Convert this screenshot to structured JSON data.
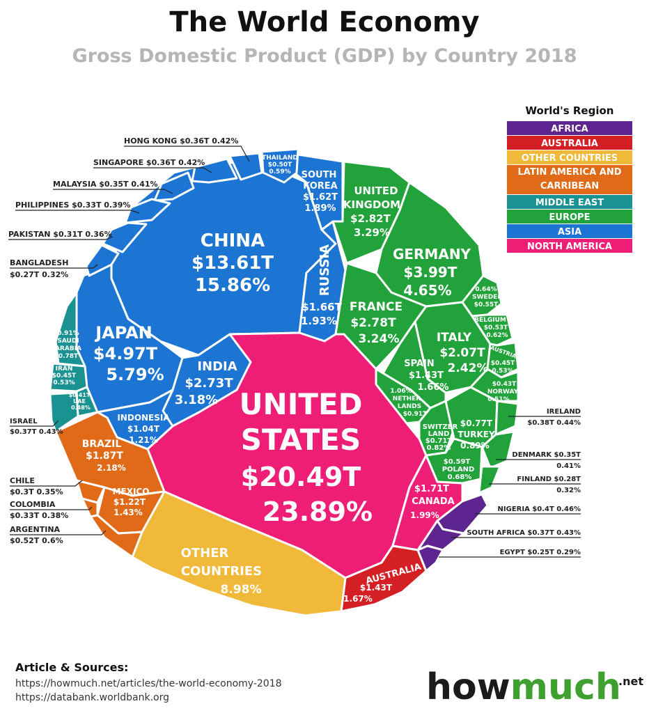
{
  "header": {
    "title": "The World Economy",
    "subtitle": "Gross Domestic Product (GDP) by Country 2018"
  },
  "legend": {
    "title": "World's Region",
    "items": [
      {
        "label": "AFRICA",
        "color": "#5e2590"
      },
      {
        "label": "AUSTRALIA",
        "color": "#d41f25"
      },
      {
        "label": "OTHER COUNTRIES",
        "color": "#f0b93a"
      },
      {
        "label": "LATIN AMERICA AND CARRIBEAN",
        "color": "#e06a17"
      },
      {
        "label": "MIDDLE EAST",
        "color": "#199291"
      },
      {
        "label": "EUROPE",
        "color": "#22a23a"
      },
      {
        "label": "ASIA",
        "color": "#1c74d3"
      },
      {
        "label": "NORTH AMERICA",
        "color": "#ee1e77"
      }
    ]
  },
  "chart_data": {
    "type": "voronoi-treemap",
    "title": "The World Economy",
    "subtitle": "Gross Domestic Product (GDP) by Country 2018",
    "unit": "GDP (trillion USD) and share of world GDP (%)",
    "countries": [
      {
        "name": "UNITED STATES",
        "region": "NORTH AMERICA",
        "gdp": "$20.49T",
        "share": "23.89%",
        "gdp_trillions": 20.49,
        "share_pct": 23.89
      },
      {
        "name": "CANADA",
        "region": "NORTH AMERICA",
        "gdp": "$1.71T",
        "share": "1.99%",
        "gdp_trillions": 1.71,
        "share_pct": 1.99
      },
      {
        "name": "CHINA",
        "region": "ASIA",
        "gdp": "$13.61T",
        "share": "15.86%",
        "gdp_trillions": 13.61,
        "share_pct": 15.86
      },
      {
        "name": "JAPAN",
        "region": "ASIA",
        "gdp": "$4.97T",
        "share": "5.79%",
        "gdp_trillions": 4.97,
        "share_pct": 5.79
      },
      {
        "name": "INDIA",
        "region": "ASIA",
        "gdp": "$2.73T",
        "share": "3.18%",
        "gdp_trillions": 2.73,
        "share_pct": 3.18
      },
      {
        "name": "RUSSIA",
        "region": "ASIA",
        "gdp": "$1.66T",
        "share": "1.93%",
        "gdp_trillions": 1.66,
        "share_pct": 1.93
      },
      {
        "name": "SOUTH KOREA",
        "region": "ASIA",
        "gdp": "$1.62T",
        "share": "1.89%",
        "gdp_trillions": 1.62,
        "share_pct": 1.89
      },
      {
        "name": "INDONESIA",
        "region": "ASIA",
        "gdp": "$1.04T",
        "share": "1.21%",
        "gdp_trillions": 1.04,
        "share_pct": 1.21
      },
      {
        "name": "THAILAND",
        "region": "ASIA",
        "gdp": "$0.50T",
        "share": "0.59%",
        "gdp_trillions": 0.5,
        "share_pct": 0.59
      },
      {
        "name": "HONG KONG",
        "region": "ASIA",
        "gdp": "$0.36T",
        "share": "0.42%",
        "gdp_trillions": 0.36,
        "share_pct": 0.42
      },
      {
        "name": "SINGAPORE",
        "region": "ASIA",
        "gdp": "$0.36T",
        "share": "0.42%",
        "gdp_trillions": 0.36,
        "share_pct": 0.42
      },
      {
        "name": "MALAYSIA",
        "region": "ASIA",
        "gdp": "$0.35T",
        "share": "0.41%",
        "gdp_trillions": 0.35,
        "share_pct": 0.41
      },
      {
        "name": "PHILIPPINES",
        "region": "ASIA",
        "gdp": "$0.33T",
        "share": "0.39%",
        "gdp_trillions": 0.33,
        "share_pct": 0.39
      },
      {
        "name": "PAKISTAN",
        "region": "ASIA",
        "gdp": "$0.31T",
        "share": "0.36%",
        "gdp_trillions": 0.31,
        "share_pct": 0.36
      },
      {
        "name": "BANGLADESH",
        "region": "ASIA",
        "gdp": "$0.27T",
        "share": "0.32%",
        "gdp_trillions": 0.27,
        "share_pct": 0.32
      },
      {
        "name": "GERMANY",
        "region": "EUROPE",
        "gdp": "$3.99T",
        "share": "4.65%",
        "gdp_trillions": 3.99,
        "share_pct": 4.65
      },
      {
        "name": "UNITED KINGDOM",
        "region": "EUROPE",
        "gdp": "$2.82T",
        "share": "3.29%",
        "gdp_trillions": 2.82,
        "share_pct": 3.29
      },
      {
        "name": "FRANCE",
        "region": "EUROPE",
        "gdp": "$2.78T",
        "share": "3.24%",
        "gdp_trillions": 2.78,
        "share_pct": 3.24
      },
      {
        "name": "ITALY",
        "region": "EUROPE",
        "gdp": "$2.07T",
        "share": "2.42%",
        "gdp_trillions": 2.07,
        "share_pct": 2.42
      },
      {
        "name": "SPAIN",
        "region": "EUROPE",
        "gdp": "$1.43T",
        "share": "1.66%",
        "gdp_trillions": 1.43,
        "share_pct": 1.66
      },
      {
        "name": "NETHERLANDS",
        "region": "EUROPE",
        "gdp": "$0.91T",
        "share": "1.06%",
        "gdp_trillions": 0.91,
        "share_pct": 1.06
      },
      {
        "name": "TURKEY",
        "region": "EUROPE",
        "gdp": "$0.77T",
        "share": "0.89%",
        "gdp_trillions": 0.77,
        "share_pct": 0.89
      },
      {
        "name": "SWITZERLAND",
        "region": "EUROPE",
        "gdp": "$0.71T",
        "share": "0.82%",
        "gdp_trillions": 0.71,
        "share_pct": 0.82
      },
      {
        "name": "POLAND",
        "region": "EUROPE",
        "gdp": "$0.59T",
        "share": "0.68%",
        "gdp_trillions": 0.59,
        "share_pct": 0.68
      },
      {
        "name": "SWEDEN",
        "region": "EUROPE",
        "gdp": "$0.55T",
        "share": "0.64%",
        "gdp_trillions": 0.55,
        "share_pct": 0.64
      },
      {
        "name": "BELGIUM",
        "region": "EUROPE",
        "gdp": "$0.53T",
        "share": "0.62%",
        "gdp_trillions": 0.53,
        "share_pct": 0.62
      },
      {
        "name": "AUSTRIA",
        "region": "EUROPE",
        "gdp": "$0.45T",
        "share": "0.53%",
        "gdp_trillions": 0.45,
        "share_pct": 0.53
      },
      {
        "name": "NORWAY",
        "region": "EUROPE",
        "gdp": "$0.43T",
        "share": "0.51%",
        "gdp_trillions": 0.43,
        "share_pct": 0.51
      },
      {
        "name": "IRELAND",
        "region": "EUROPE",
        "gdp": "$0.38T",
        "share": "0.44%",
        "gdp_trillions": 0.38,
        "share_pct": 0.44
      },
      {
        "name": "DENMARK",
        "region": "EUROPE",
        "gdp": "$0.35T",
        "share": "0.41%",
        "gdp_trillions": 0.35,
        "share_pct": 0.41
      },
      {
        "name": "FINLAND",
        "region": "EUROPE",
        "gdp": "$0.28T",
        "share": "0.32%",
        "gdp_trillions": 0.28,
        "share_pct": 0.32
      },
      {
        "name": "BRAZIL",
        "region": "LATIN AMERICA AND CARRIBEAN",
        "gdp": "$1.87T",
        "share": "2.18%",
        "gdp_trillions": 1.87,
        "share_pct": 2.18
      },
      {
        "name": "MEXICO",
        "region": "LATIN AMERICA AND CARRIBEAN",
        "gdp": "$1.22T",
        "share": "1.43%",
        "gdp_trillions": 1.22,
        "share_pct": 1.43
      },
      {
        "name": "ARGENTINA",
        "region": "LATIN AMERICA AND CARRIBEAN",
        "gdp": "$0.52T",
        "share": "0.6%",
        "gdp_trillions": 0.52,
        "share_pct": 0.6
      },
      {
        "name": "COLOMBIA",
        "region": "LATIN AMERICA AND CARRIBEAN",
        "gdp": "$0.33T",
        "share": "0.38%",
        "gdp_trillions": 0.33,
        "share_pct": 0.38
      },
      {
        "name": "CHILE",
        "region": "LATIN AMERICA AND CARRIBEAN",
        "gdp": "$0.3T",
        "share": "0.35%",
        "gdp_trillions": 0.3,
        "share_pct": 0.35
      },
      {
        "name": "SAUDI ARABIA",
        "region": "MIDDLE EAST",
        "gdp": "0.78T",
        "share": "0.91%",
        "gdp_trillions": 0.78,
        "share_pct": 0.91
      },
      {
        "name": "IRAN",
        "region": "MIDDLE EAST",
        "gdp": "$0.45T",
        "share": "0.53%",
        "gdp_trillions": 0.45,
        "share_pct": 0.53
      },
      {
        "name": "UAE",
        "region": "MIDDLE EAST",
        "gdp": "$0.41T",
        "share": "0.48%",
        "gdp_trillions": 0.41,
        "share_pct": 0.48
      },
      {
        "name": "ISRAEL",
        "region": "MIDDLE EAST",
        "gdp": "$0.37T",
        "share": "0.43%",
        "gdp_trillions": 0.37,
        "share_pct": 0.43
      },
      {
        "name": "AUSTRALIA",
        "region": "AUSTRALIA",
        "gdp": "$1.43T",
        "share": "1.67%",
        "gdp_trillions": 1.43,
        "share_pct": 1.67
      },
      {
        "name": "NIGERIA",
        "region": "AFRICA",
        "gdp": "$0.4T",
        "share": "0.46%",
        "gdp_trillions": 0.4,
        "share_pct": 0.46
      },
      {
        "name": "SOUTH AFRICA",
        "region": "AFRICA",
        "gdp": "$0.37T",
        "share": "0.43%",
        "gdp_trillions": 0.37,
        "share_pct": 0.43
      },
      {
        "name": "EGYPT",
        "region": "AFRICA",
        "gdp": "$0.25T",
        "share": "0.29%",
        "gdp_trillions": 0.25,
        "share_pct": 0.29
      },
      {
        "name": "OTHER COUNTRIES",
        "region": "OTHER COUNTRIES",
        "gdp": "",
        "share": "8.98%",
        "gdp_trillions": null,
        "share_pct": 8.98
      }
    ]
  },
  "cell_labels": {
    "us": [
      "UNITED",
      "STATES",
      "$20.49T",
      "23.89%"
    ],
    "china": [
      "CHINA",
      "$13.61T",
      "15.86%"
    ],
    "japan": [
      "JAPAN",
      "$4.97T",
      "5.79%"
    ],
    "india": [
      "INDIA",
      "$2.73T",
      "3.18%"
    ],
    "russia": [
      "RUSSIA",
      "$1.66T",
      "1.93%"
    ],
    "south_korea": [
      "SOUTH",
      "KOREA",
      "$1.62T",
      "1.89%"
    ],
    "thailand": [
      "THAILAND",
      "$0.50T",
      "0.59%"
    ],
    "indonesia": [
      "INDONESIA",
      "$1.04T",
      "1.21%"
    ],
    "uk": [
      "UNITED",
      "KINGDOM",
      "$2.82T",
      "3.29%"
    ],
    "germany": [
      "GERMANY",
      "$3.99T",
      "4.65%"
    ],
    "france": [
      "FRANCE",
      "$2.78T",
      "3.24%"
    ],
    "italy": [
      "ITALY",
      "$2.07T",
      "2.42%"
    ],
    "spain": [
      "SPAIN",
      "$1.43T",
      "1.66%"
    ],
    "netherlands": [
      "1.06%",
      "NETHER",
      "LANDS",
      "$0.91T"
    ],
    "switzerland": [
      "SWITZER",
      "LAND",
      "$0.71T",
      "0.82%"
    ],
    "turkey": [
      "$0.77T",
      "TURKEY",
      "0.89%"
    ],
    "poland": [
      "$0.59T",
      "POLAND",
      "0.68%"
    ],
    "sweden": [
      "0.64%",
      "SWEDEN",
      "$0.55T"
    ],
    "belgium": [
      "BELGIUM",
      "$0.53T",
      "0.62%"
    ],
    "austria": [
      "AUSTRIA",
      "$0.45T",
      "0.53%"
    ],
    "norway": [
      "$0.43T",
      "NORWAY",
      "0.51%"
    ],
    "canada": [
      "$1.71T",
      "CANADA",
      "1.99%"
    ],
    "australia": [
      "AUSTRALIA",
      "$1.43T",
      "1.67%"
    ],
    "brazil": [
      "BRAZIL",
      "$1.87T",
      "2.18%"
    ],
    "mexico": [
      "MEXICO",
      "$1.22T",
      "1.43%"
    ],
    "other": [
      "OTHER",
      "COUNTRIES",
      "8.98%"
    ],
    "saudi": [
      "0.91%",
      "SAUDI",
      "ARABIA",
      "0.78T"
    ],
    "iran": [
      "IRAN",
      "$0.45T",
      "0.53%"
    ],
    "uae": [
      "$0.41T",
      "UAE",
      "0.48%"
    ]
  },
  "callouts": {
    "hong_kong": "HONG KONG  $0.36T  0.42%",
    "singapore": "SINGAPORE $0.36T  0.42%",
    "malaysia": "MALAYSIA  $0.35T  0.41%",
    "philippines": "PHILIPPINES $0.33T  0.39%",
    "pakistan": "PAKISTAN $0.31T 0.36%",
    "bangladesh_1": "BANGLADESH",
    "bangladesh_2": "$0.27T  0.32%",
    "israel_1": "ISRAEL",
    "israel_2": "$0.37T  0.43%",
    "chile_1": "CHILE",
    "chile_2": "$0.3T  0.35%",
    "colombia_1": "COLOMBIA",
    "colombia_2": "$0.33T  0.38%",
    "argentina_1": "ARGENTINA",
    "argentina_2": "$0.52T  0.6%",
    "ireland_1": "IRELAND",
    "ireland_2": "$0.38T  0.44%",
    "denmark_1": "DENMARK  $0.35T",
    "denmark_2": "0.41%",
    "finland_1": "FINLAND  $0.28T",
    "finland_2": "0.32%",
    "nigeria": "NIGERIA $0.4T  0.46%",
    "south_africa": "SOUTH AFRICA $0.37T  0.43%",
    "egypt": "EGYPT  $0.25T  0.29%"
  },
  "sources": {
    "heading": "Article & Sources:",
    "line1": "https://howmuch.net/articles/the-world-economy-2018",
    "line2": "https://databank.worldbank.org"
  },
  "logo": {
    "part1": "how",
    "part2": "much",
    "suffix": ".net"
  }
}
